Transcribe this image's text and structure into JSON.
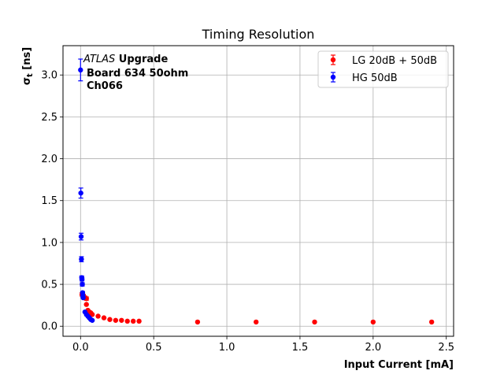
{
  "chart_data": {
    "type": "scatter",
    "title": "Timing Resolution",
    "xlabel": "Input Current [mA]",
    "ylabel": "σ",
    "ylabel_sub": "t",
    "ylabel_unit": " [ns]",
    "xlim": [
      -0.12,
      2.55
    ],
    "ylim": [
      -0.12,
      3.35
    ],
    "x_ticks": [
      0.0,
      0.5,
      1.0,
      1.5,
      2.0,
      2.5
    ],
    "x_tick_labels": [
      "0.0",
      "0.5",
      "1.0",
      "1.5",
      "2.0",
      "2.5"
    ],
    "y_ticks": [
      0.0,
      0.5,
      1.0,
      1.5,
      2.0,
      2.5,
      3.0
    ],
    "y_tick_labels": [
      "0.0",
      "0.5",
      "1.0",
      "1.5",
      "2.0",
      "2.5",
      "3.0"
    ],
    "grid": true,
    "legend_position": "top-right",
    "annotation": {
      "italic": "ATLAS",
      "bold": " Upgrade",
      "line2": "Board 634 50ohm",
      "line3": "Ch066"
    },
    "series": [
      {
        "name": "LG 20dB + 50dB",
        "color": "#ff0000",
        "points": [
          {
            "x": 0.01,
            "y": 0.38,
            "err": 0.02
          },
          {
            "x": 0.02,
            "y": 0.36,
            "err": 0.02
          },
          {
            "x": 0.03,
            "y": 0.34,
            "err": 0.02
          },
          {
            "x": 0.04,
            "y": 0.33,
            "err": 0.02
          },
          {
            "x": 0.04,
            "y": 0.26,
            "err": 0.01
          },
          {
            "x": 0.05,
            "y": 0.19,
            "err": 0.01
          },
          {
            "x": 0.06,
            "y": 0.17,
            "err": 0.01
          },
          {
            "x": 0.07,
            "y": 0.16,
            "err": 0.01
          },
          {
            "x": 0.08,
            "y": 0.14,
            "err": 0.01
          },
          {
            "x": 0.12,
            "y": 0.12,
            "err": 0.005
          },
          {
            "x": 0.16,
            "y": 0.1,
            "err": 0.005
          },
          {
            "x": 0.2,
            "y": 0.08,
            "err": 0.005
          },
          {
            "x": 0.24,
            "y": 0.07,
            "err": 0.005
          },
          {
            "x": 0.28,
            "y": 0.07,
            "err": 0.005
          },
          {
            "x": 0.32,
            "y": 0.06,
            "err": 0.005
          },
          {
            "x": 0.36,
            "y": 0.06,
            "err": 0.005
          },
          {
            "x": 0.4,
            "y": 0.06,
            "err": 0.005
          },
          {
            "x": 0.8,
            "y": 0.05,
            "err": 0.003
          },
          {
            "x": 1.2,
            "y": 0.05,
            "err": 0.003
          },
          {
            "x": 1.6,
            "y": 0.05,
            "err": 0.003
          },
          {
            "x": 2.0,
            "y": 0.05,
            "err": 0.003
          },
          {
            "x": 2.4,
            "y": 0.05,
            "err": 0.003
          }
        ]
      },
      {
        "name": "HG 50dB",
        "color": "#0000ff",
        "points": [
          {
            "x": 0.0,
            "y": 3.06,
            "err": 0.13
          },
          {
            "x": 0.002,
            "y": 1.59,
            "err": 0.06
          },
          {
            "x": 0.004,
            "y": 1.07,
            "err": 0.04
          },
          {
            "x": 0.006,
            "y": 0.8,
            "err": 0.03
          },
          {
            "x": 0.008,
            "y": 0.58,
            "err": 0.02
          },
          {
            "x": 0.01,
            "y": 0.56,
            "err": 0.02
          },
          {
            "x": 0.012,
            "y": 0.5,
            "err": 0.02
          },
          {
            "x": 0.014,
            "y": 0.4,
            "err": 0.015
          },
          {
            "x": 0.016,
            "y": 0.36,
            "err": 0.015
          },
          {
            "x": 0.018,
            "y": 0.34,
            "err": 0.01
          },
          {
            "x": 0.03,
            "y": 0.17,
            "err": 0.01
          },
          {
            "x": 0.04,
            "y": 0.14,
            "err": 0.01
          },
          {
            "x": 0.05,
            "y": 0.12,
            "err": 0.005
          },
          {
            "x": 0.06,
            "y": 0.1,
            "err": 0.005
          },
          {
            "x": 0.07,
            "y": 0.08,
            "err": 0.005
          },
          {
            "x": 0.08,
            "y": 0.07,
            "err": 0.005
          }
        ]
      }
    ]
  }
}
